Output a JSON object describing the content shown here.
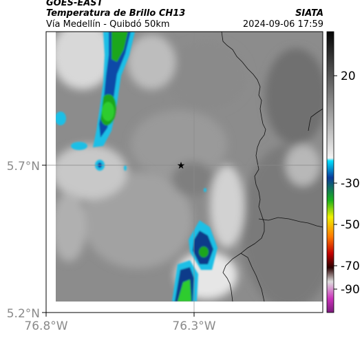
{
  "header": {
    "satellite": "GOES-EAST",
    "product": "Temperatura de Brillo CH13",
    "route": "Vía Medellín - Quibdó 50km",
    "agency": "SIATA",
    "datetime": "2024-09-06 17:59"
  },
  "map": {
    "lat_ticks": [
      {
        "value": 5.7,
        "label": "5.7°N"
      },
      {
        "value": 5.2,
        "label": "5.2°N"
      }
    ],
    "lon_ticks": [
      {
        "value": -76.8,
        "label": "76.8°W"
      },
      {
        "value": -76.3,
        "label": "76.3°W"
      }
    ],
    "marker": "star-marker"
  },
  "colorbar": {
    "ticks": [
      {
        "value": 20,
        "label": "20"
      },
      {
        "value": -30,
        "label": "-30"
      },
      {
        "value": -50,
        "label": "-50"
      },
      {
        "value": -70,
        "label": "-70"
      },
      {
        "value": -90,
        "label": "-90"
      }
    ]
  }
}
